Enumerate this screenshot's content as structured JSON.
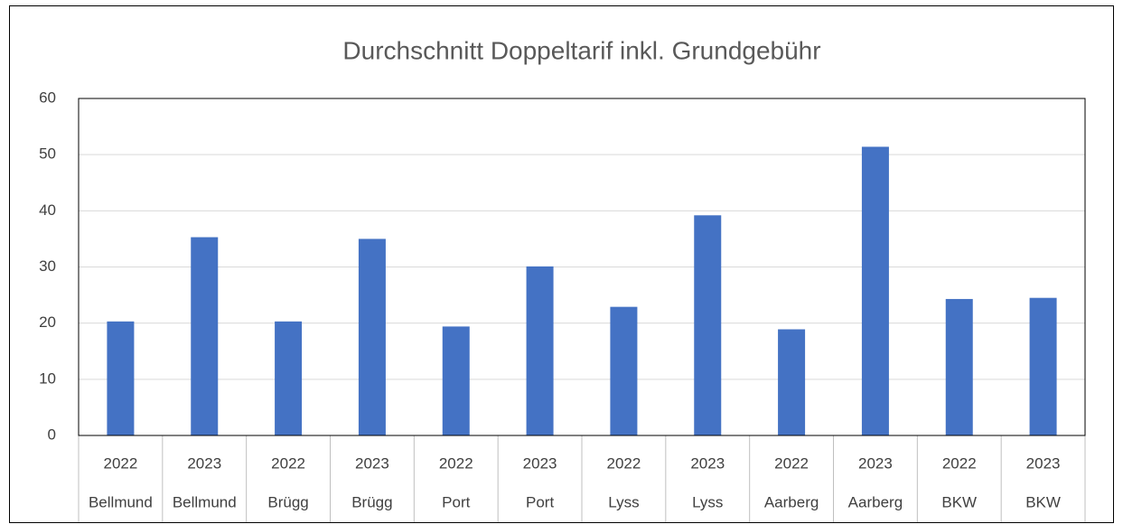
{
  "chart_data": {
    "type": "bar",
    "title": "Durchschnitt Doppeltarif inkl. Grundgebühr",
    "categories": [
      [
        "2022",
        "Bellmund"
      ],
      [
        "2023",
        "Bellmund"
      ],
      [
        "2022",
        "Brügg"
      ],
      [
        "2023",
        "Brügg"
      ],
      [
        "2022",
        "Port"
      ],
      [
        "2023",
        "Port"
      ],
      [
        "2022",
        "Lyss"
      ],
      [
        "2023",
        "Lyss"
      ],
      [
        "2022",
        "Aarberg"
      ],
      [
        "2023",
        "Aarberg"
      ],
      [
        "2022",
        "BKW"
      ],
      [
        "2023",
        "BKW"
      ]
    ],
    "values": [
      20.3,
      35.3,
      20.3,
      35.0,
      19.4,
      30.1,
      22.9,
      39.2,
      18.9,
      51.4,
      24.3,
      24.5
    ],
    "color": "#4472c4",
    "ylim": [
      0,
      60
    ],
    "yticks": [
      0,
      10,
      20,
      30,
      40,
      50,
      60
    ],
    "grid": true
  }
}
